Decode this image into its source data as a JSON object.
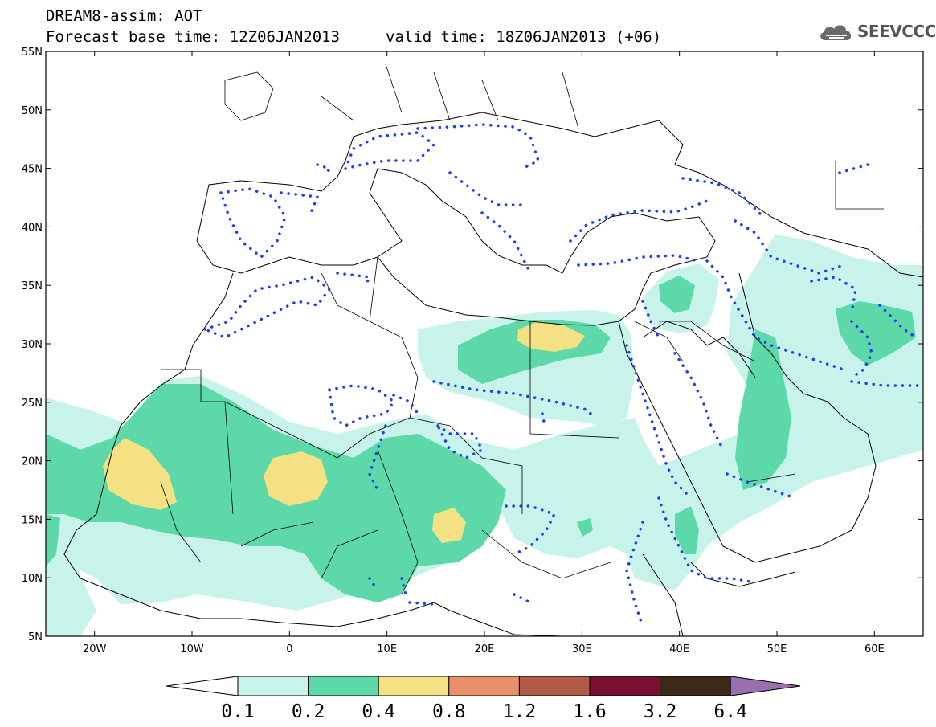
{
  "header": {
    "line1": "DREAM8-assim: AOT",
    "line2": "Forecast base time: 12Z06JAN2013",
    "line3": "valid time: 18Z06JAN2013 (+06)"
  },
  "logo": {
    "text": "SEEVCCC",
    "icon": "cloud-icon"
  },
  "map": {
    "region": "North Africa, Europe, Middle East",
    "lon_range": [
      -25,
      65
    ],
    "lat_range": [
      5,
      55
    ],
    "lon_ticks": [
      "20W",
      "10W",
      "0",
      "10E",
      "20E",
      "30E",
      "40E",
      "50E",
      "60E"
    ],
    "lat_ticks": [
      "55N",
      "50N",
      "45N",
      "40N",
      "35N",
      "30N",
      "25N",
      "20N",
      "15N",
      "10N",
      "5N"
    ]
  },
  "colorbar": {
    "labels": [
      "0.1",
      "0.2",
      "0.4",
      "0.8",
      "1.2",
      "1.6",
      "3.2",
      "6.4"
    ],
    "colors": [
      "#c7f3ea",
      "#5dd8a8",
      "#f3e184",
      "#e9916a",
      "#b05a48",
      "#7a1030",
      "#3a2a18",
      "#9a6fb0"
    ]
  }
}
